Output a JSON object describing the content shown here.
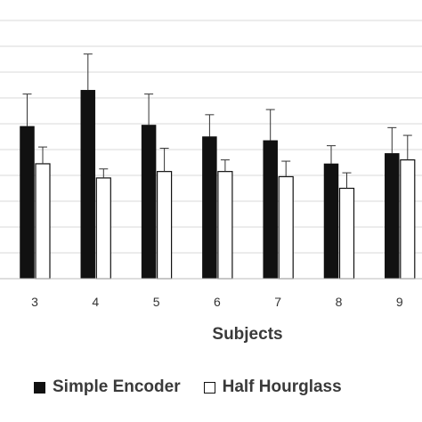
{
  "chart_data": {
    "type": "bar",
    "xlabel": "Subjects",
    "categories": [
      "3",
      "4",
      "5",
      "6",
      "7",
      "8",
      "9"
    ],
    "ylim": [
      0,
      10
    ],
    "grid": true,
    "legend_position": "bottom",
    "series": [
      {
        "name": "Simple Encoder",
        "color": "#111111",
        "values": [
          5.9,
          7.3,
          5.95,
          5.5,
          5.35,
          4.45,
          4.85
        ],
        "errors": [
          1.25,
          1.4,
          1.2,
          0.85,
          1.2,
          0.7,
          1.0
        ]
      },
      {
        "name": "Half Hourglass",
        "color": "#ffffff",
        "values": [
          4.45,
          3.9,
          4.15,
          4.15,
          3.95,
          3.5,
          4.6
        ],
        "errors": [
          0.65,
          0.35,
          0.9,
          0.45,
          0.6,
          0.6,
          0.95
        ]
      }
    ]
  }
}
